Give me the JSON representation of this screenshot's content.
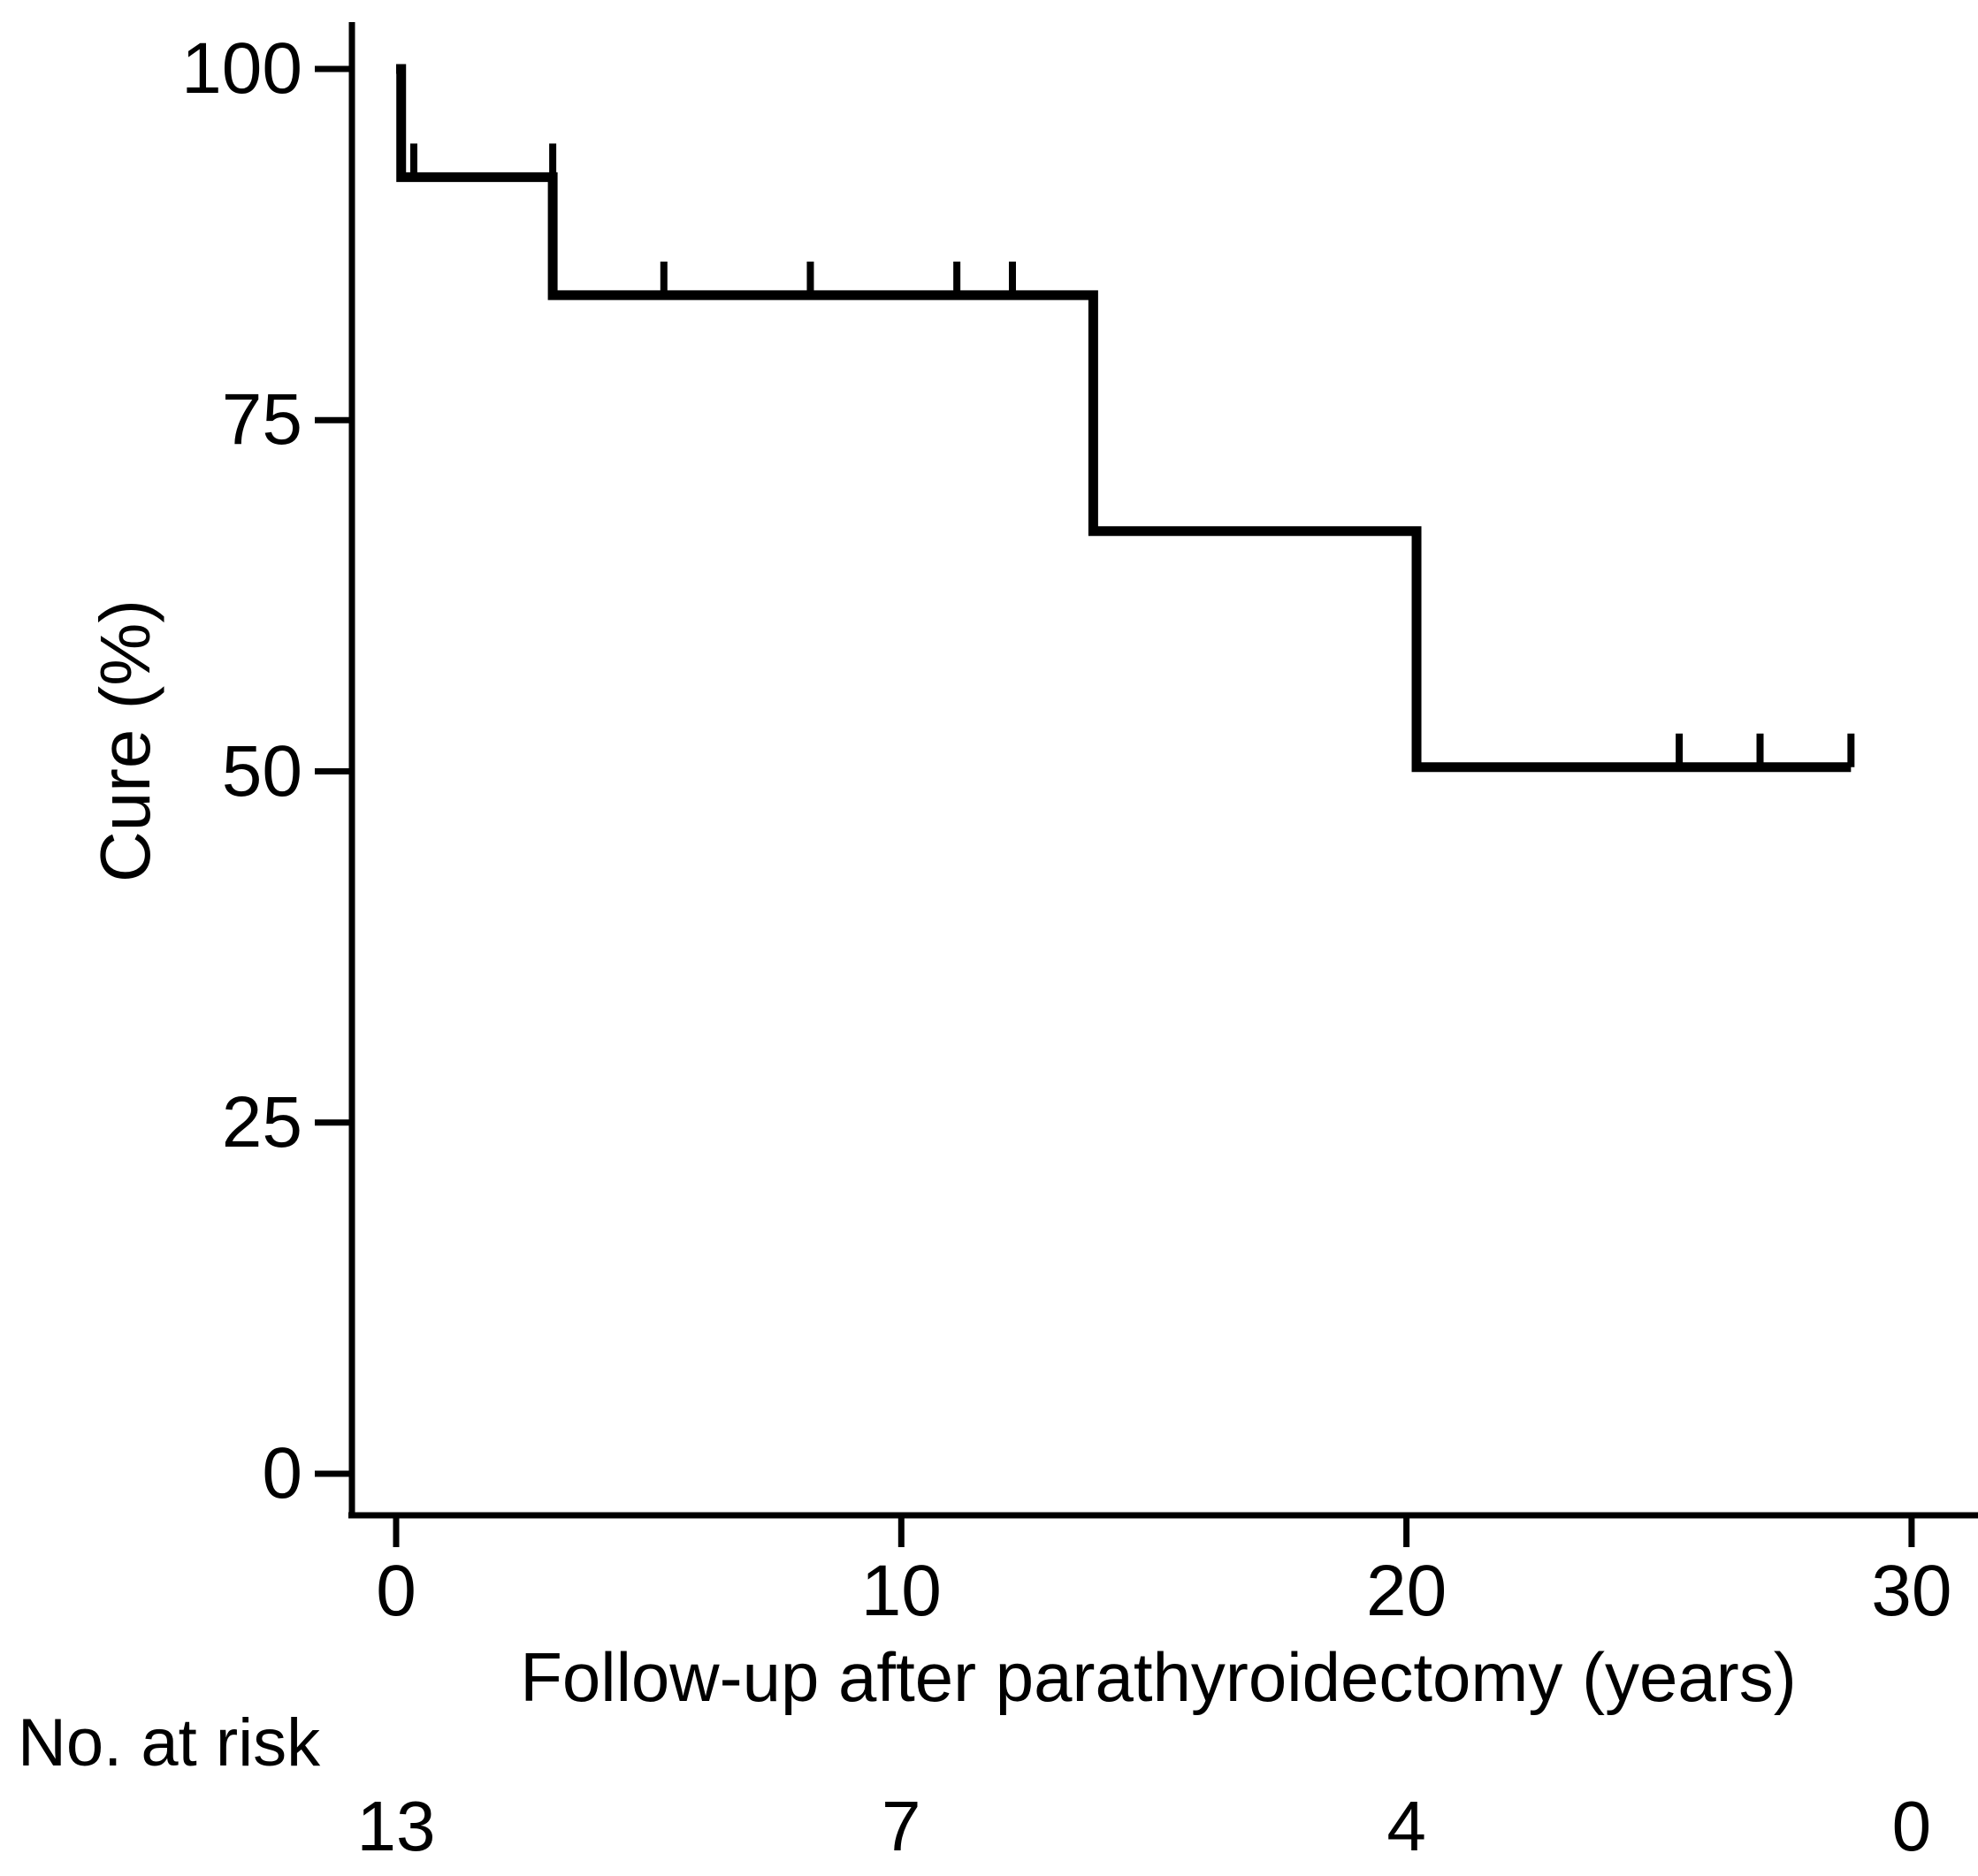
{
  "colors": {
    "curve": "#000000",
    "axis": "#000000",
    "text": "#000000",
    "background": "#ffffff"
  },
  "chart_data": {
    "type": "line",
    "subtype": "kaplan-meier-step",
    "xlabel": "Follow-up after parathyroidectomy (years)",
    "ylabel": "Cure (%)",
    "xlim": [
      0,
      30
    ],
    "ylim": [
      0,
      100
    ],
    "x_ticks": [
      0,
      10,
      20,
      30
    ],
    "y_ticks": [
      100,
      75,
      50,
      25,
      0
    ],
    "grid": false,
    "legend": false,
    "series": [
      {
        "name": "Cure",
        "steps": [
          {
            "x": 0,
            "y": 100
          },
          {
            "x": 0.1,
            "y": 92.3
          },
          {
            "x": 3.1,
            "y": 83.9
          },
          {
            "x": 13.8,
            "y": 67.1
          },
          {
            "x": 20.2,
            "y": 50.3
          }
        ],
        "end_x": 28.8,
        "censor_marks": [
          {
            "x": 0.35,
            "y": 92.3
          },
          {
            "x": 3.1,
            "y": 92.3
          },
          {
            "x": 5.3,
            "y": 83.9
          },
          {
            "x": 8.2,
            "y": 83.9
          },
          {
            "x": 11.1,
            "y": 83.9
          },
          {
            "x": 12.2,
            "y": 83.9
          },
          {
            "x": 25.4,
            "y": 50.3
          },
          {
            "x": 27.0,
            "y": 50.3
          },
          {
            "x": 28.8,
            "y": 50.3
          }
        ]
      }
    ],
    "risk_table": {
      "label": "No. at risk",
      "times": [
        0,
        10,
        20,
        30
      ],
      "counts": [
        13,
        7,
        4,
        0
      ]
    }
  }
}
